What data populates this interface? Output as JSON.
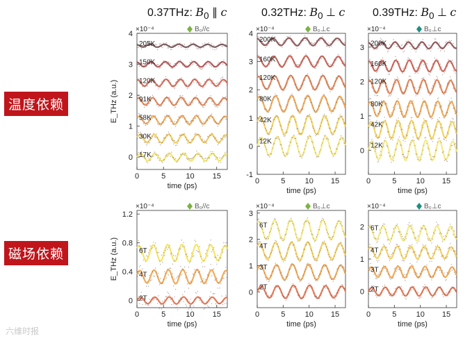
{
  "column_titles": [
    {
      "prefix": "0.37THz: ",
      "field": "B",
      "sub": "0",
      "relation": " ∥ ",
      "axis": "c"
    },
    {
      "prefix": "0.32THz: ",
      "field": "B",
      "sub": "0",
      "relation": " ⊥ ",
      "axis": "c"
    },
    {
      "prefix": "0.39THz: ",
      "field": "B",
      "sub": "0",
      "relation": " ⊥ ",
      "axis": "c"
    }
  ],
  "row_labels": {
    "temperature": "温度依赖",
    "field": "磁场依赖"
  },
  "watermark": "六维时报",
  "colors": {
    "diamond_green": "#7cb342",
    "diamond_teal": "#1e8e82",
    "label_red": "#c0151b"
  },
  "chart_data": [
    {
      "id": "a",
      "type": "line",
      "panel": "top-left",
      "legend": "B₀//c",
      "diamond": "#7cb342",
      "multiplier": "×10⁻⁴",
      "xlabel": "time (ps)",
      "ylabel": "E_THz (a.u.)",
      "xlim": [
        0,
        17
      ],
      "ylim": [
        -0.4,
        4.0
      ],
      "xticks": [
        0,
        5,
        10,
        15
      ],
      "yticks": [
        0,
        1,
        2,
        3,
        4
      ],
      "period_ps": 2.7,
      "noise": 0.03,
      "series": [
        {
          "name": "17K",
          "offset": 0.0,
          "amplitude": 0.13,
          "color": "#f2e45c"
        },
        {
          "name": "30K",
          "offset": 0.6,
          "amplitude": 0.14,
          "color": "#f3c850"
        },
        {
          "name": "58K",
          "offset": 1.2,
          "amplitude": 0.14,
          "color": "#eda14a"
        },
        {
          "name": "91K",
          "offset": 1.8,
          "amplitude": 0.13,
          "color": "#e07b48"
        },
        {
          "name": "120K",
          "offset": 2.4,
          "amplitude": 0.12,
          "color": "#d5604a"
        },
        {
          "name": "150K",
          "offset": 3.0,
          "amplitude": 0.09,
          "color": "#b0484a"
        },
        {
          "name": "205K",
          "offset": 3.6,
          "amplitude": 0.05,
          "color": "#6e4b4f"
        }
      ]
    },
    {
      "id": "b",
      "type": "line",
      "panel": "top-middle",
      "legend": "B₀⊥c",
      "diamond": "#7cb342",
      "multiplier": "×10⁻⁴",
      "xlabel": "time (ps)",
      "ylabel": "",
      "xlim": [
        0,
        17
      ],
      "ylim": [
        -1.0,
        4.0
      ],
      "xticks": [
        0,
        5,
        10,
        15
      ],
      "yticks": [
        -1,
        0,
        1,
        2,
        3,
        4
      ],
      "period_ps": 3.1,
      "noise": 0.03,
      "series": [
        {
          "name": "12K",
          "offset": 0.0,
          "amplitude": 0.36,
          "color": "#f4e87a"
        },
        {
          "name": "42K",
          "offset": 0.75,
          "amplitude": 0.34,
          "color": "#f2cf55"
        },
        {
          "name": "80K",
          "offset": 1.5,
          "amplitude": 0.3,
          "color": "#eca24a"
        },
        {
          "name": "120K",
          "offset": 2.25,
          "amplitude": 0.26,
          "color": "#e07a48"
        },
        {
          "name": "160K",
          "offset": 3.0,
          "amplitude": 0.2,
          "color": "#c9584a"
        },
        {
          "name": "200K",
          "offset": 3.7,
          "amplitude": 0.14,
          "color": "#8a4a4d"
        }
      ]
    },
    {
      "id": "c",
      "type": "line",
      "panel": "top-right",
      "legend": "B₀⊥c",
      "diamond": "#1e8e82",
      "multiplier": "×10⁻⁴",
      "xlabel": "time (ps)",
      "ylabel": "",
      "xlim": [
        0,
        17
      ],
      "ylim": [
        -0.7,
        3.4
      ],
      "xticks": [
        0,
        5,
        10,
        15
      ],
      "yticks": [
        0,
        1,
        2,
        3
      ],
      "period_ps": 2.6,
      "noise": 0.04,
      "series": [
        {
          "name": "12K",
          "offset": 0.0,
          "amplitude": 0.3,
          "color": "#f4e87a"
        },
        {
          "name": "42K",
          "offset": 0.6,
          "amplitude": 0.27,
          "color": "#f2cf55"
        },
        {
          "name": "80K",
          "offset": 1.2,
          "amplitude": 0.24,
          "color": "#eca24a"
        },
        {
          "name": "120K",
          "offset": 1.85,
          "amplitude": 0.21,
          "color": "#e07a48"
        },
        {
          "name": "160K",
          "offset": 2.45,
          "amplitude": 0.17,
          "color": "#c9584a"
        },
        {
          "name": "200K",
          "offset": 3.05,
          "amplitude": 0.1,
          "color": "#8a4a4d"
        }
      ]
    },
    {
      "id": "d",
      "type": "line",
      "panel": "bottom-left",
      "legend": "B₀//c",
      "diamond": "#7cb342",
      "multiplier": "×10⁻⁴",
      "xlabel": "time (ps)",
      "ylabel": "E_THz (a.u.)",
      "xlim": [
        0,
        17
      ],
      "ylim": [
        -0.1,
        1.25
      ],
      "xticks": [
        0,
        5,
        10,
        15
      ],
      "yticks": [
        0,
        0.4,
        0.8,
        1.2
      ],
      "period_ps": 2.7,
      "noise": 0.03,
      "series": [
        {
          "name": "2T",
          "offset": 0.0,
          "amplitude": 0.05,
          "color": "#e26a46"
        },
        {
          "name": "4T",
          "offset": 0.33,
          "amplitude": 0.1,
          "color": "#efa248"
        },
        {
          "name": "6T",
          "offset": 0.66,
          "amplitude": 0.12,
          "color": "#f4e25a"
        }
      ]
    },
    {
      "id": "e",
      "type": "line",
      "panel": "bottom-middle",
      "legend": "B₀⊥c",
      "diamond": "#7cb342",
      "multiplier": "×10⁻⁴",
      "xlabel": "time (ps)",
      "ylabel": "",
      "xlim": [
        0,
        17
      ],
      "ylim": [
        -0.6,
        3.1
      ],
      "xticks": [
        0,
        5,
        10,
        15
      ],
      "yticks": [
        0,
        1,
        2,
        3
      ],
      "period_ps": 3.1,
      "noise": 0.03,
      "series": [
        {
          "name": "2T",
          "offset": 0.0,
          "amplitude": 0.25,
          "color": "#e26a46"
        },
        {
          "name": "3T",
          "offset": 0.75,
          "amplitude": 0.3,
          "color": "#efa248"
        },
        {
          "name": "4T",
          "offset": 1.55,
          "amplitude": 0.35,
          "color": "#f3cd55"
        },
        {
          "name": "6T",
          "offset": 2.35,
          "amplitude": 0.4,
          "color": "#f4e87a"
        }
      ]
    },
    {
      "id": "f",
      "type": "line",
      "panel": "bottom-right",
      "legend": "B₀⊥c",
      "diamond": "#1e8e82",
      "multiplier": "×10⁻⁴",
      "xlabel": "time (ps)",
      "ylabel": "",
      "xlim": [
        0,
        17
      ],
      "ylim": [
        -0.5,
        2.5
      ],
      "xticks": [
        0,
        5,
        10,
        15
      ],
      "yticks": [
        0,
        1,
        2
      ],
      "period_ps": 2.6,
      "noise": 0.04,
      "series": [
        {
          "name": "2T",
          "offset": 0.0,
          "amplitude": 0.14,
          "color": "#e26a46"
        },
        {
          "name": "3T",
          "offset": 0.6,
          "amplitude": 0.18,
          "color": "#efa248"
        },
        {
          "name": "4T",
          "offset": 1.2,
          "amplitude": 0.2,
          "color": "#f3cd55"
        },
        {
          "name": "6T",
          "offset": 1.8,
          "amplitude": 0.24,
          "color": "#f4e87a"
        }
      ]
    }
  ]
}
